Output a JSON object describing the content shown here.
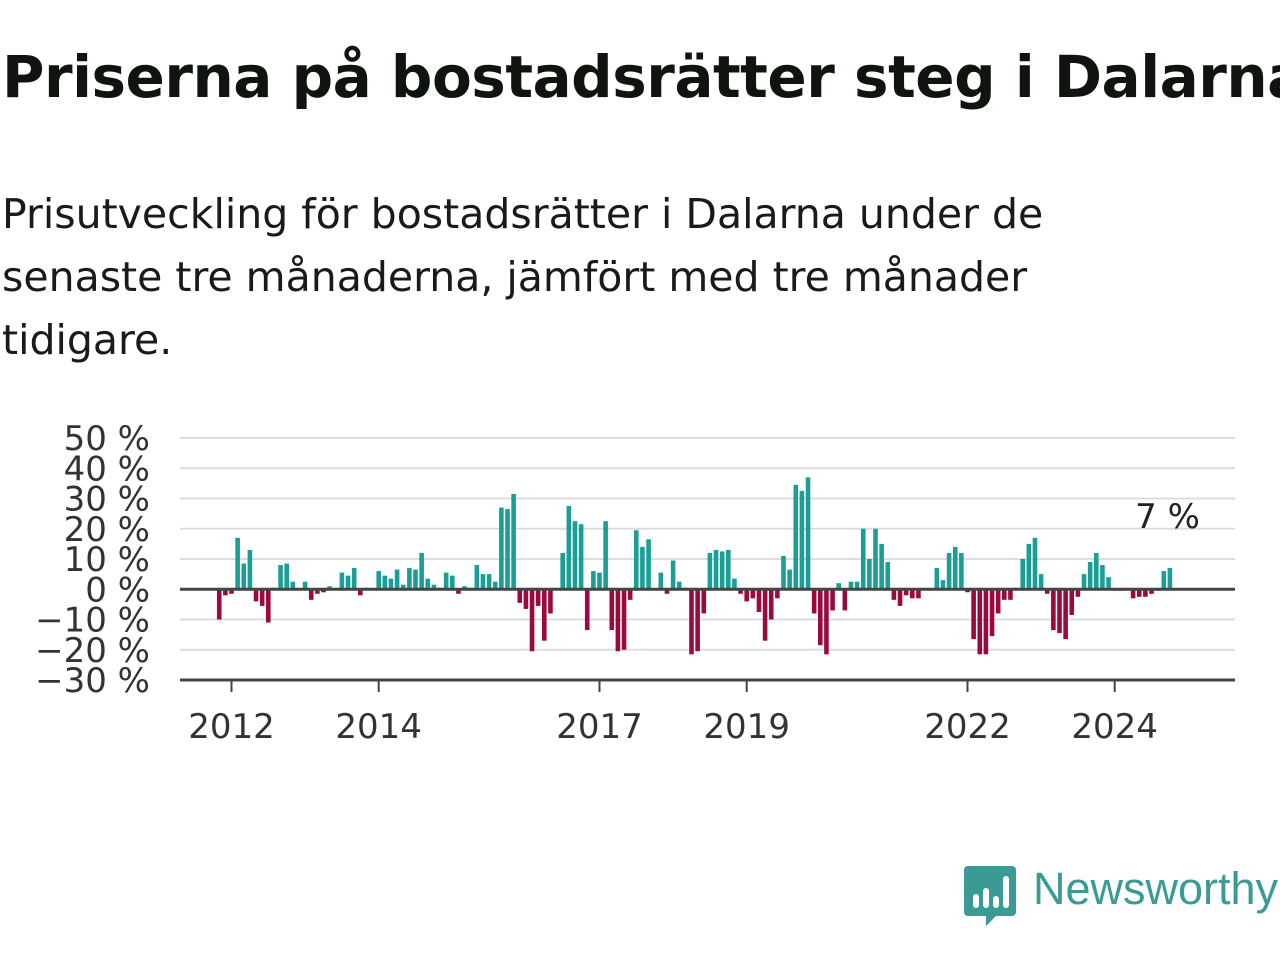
{
  "header": {
    "title": "Priserna på bostadsrätter steg i Dalarna",
    "subtitle": "Prisutveckling för bostadsrätter i Dalarna under de senaste tre månaderna, jämfört med tre månader tidigare."
  },
  "brand": {
    "name": "Newsworthy",
    "logo_icon": "newsworthy-logo-icon"
  },
  "colors": {
    "positive": "#1b9e96",
    "negative": "#9a0a3f",
    "grid": "#dddddd",
    "axis": "#444444",
    "text": "#222222",
    "brand": "#3a9b95"
  },
  "chart_data": {
    "type": "bar",
    "y_ticks": [
      50,
      40,
      30,
      20,
      10,
      0,
      -10,
      -20,
      -30
    ],
    "y_tick_labels": [
      "50 %",
      "40 %",
      "30 %",
      "20 %",
      "10 %",
      "0 %",
      "−10 %",
      "−20 %",
      "−30 %"
    ],
    "x_ticks": [
      2012,
      2014,
      2017,
      2019,
      2022,
      2024
    ],
    "x_tick_labels": [
      "2012",
      "2014",
      "2017",
      "2019",
      "2022",
      "2024"
    ],
    "ylim": [
      -30,
      50
    ],
    "grid": true,
    "last_value_label": "7 %",
    "series": [
      {
        "start": "2011-11",
        "frequency": "monthly",
        "values": [
          -10,
          -2,
          -1.5,
          17,
          8.5,
          13,
          -4,
          -5.5,
          -11,
          0.5,
          8,
          8.5,
          2.5,
          0,
          2.5,
          -3.5,
          -1.5,
          -1,
          1,
          0.5,
          5.5,
          4.5,
          7,
          -2,
          0.5,
          0,
          6,
          4.5,
          3.5,
          6.5,
          1.5,
          7,
          6.5,
          12,
          3.5,
          1.5,
          0.5,
          5.5,
          4.5,
          -1.5,
          1,
          0.5,
          8,
          5,
          5,
          2.5,
          27,
          26.5,
          31.5,
          -4.5,
          -6.5,
          -20.5,
          -5.5,
          -17,
          -8,
          0,
          12,
          27.5,
          22.5,
          21.5,
          -13.5,
          6,
          5.5,
          22.5,
          -13.5,
          -20.5,
          -20,
          -3.5,
          19.5,
          14,
          16.5,
          0,
          5.5,
          -1.5,
          9.5,
          2.5,
          0.5,
          -21.5,
          -20.5,
          -8,
          12,
          13,
          12.5,
          13,
          3.5,
          -1.5,
          -4,
          -3,
          -7.5,
          -17,
          -10,
          -3,
          11,
          6.5,
          34.5,
          32.5,
          37,
          -8,
          -18.5,
          -21.5,
          -7,
          2,
          -7,
          2.5,
          2.5,
          20,
          10,
          20,
          15,
          9,
          -3.5,
          -5.5,
          -2,
          -3,
          -3,
          0,
          0,
          7,
          3,
          12,
          14,
          12,
          -1,
          -16.5,
          -21.5,
          -21.5,
          -15.5,
          -8,
          -3.5,
          -3.5,
          0.5,
          10,
          15,
          17,
          5,
          -1.5,
          -13.5,
          -14.5,
          -16.5,
          -8.5,
          -2.5,
          5,
          9,
          12,
          8,
          4,
          -0.5,
          -0.5,
          0,
          -3,
          -2.5,
          -2.5,
          -1.5,
          -0.5,
          6,
          7
        ]
      }
    ]
  }
}
